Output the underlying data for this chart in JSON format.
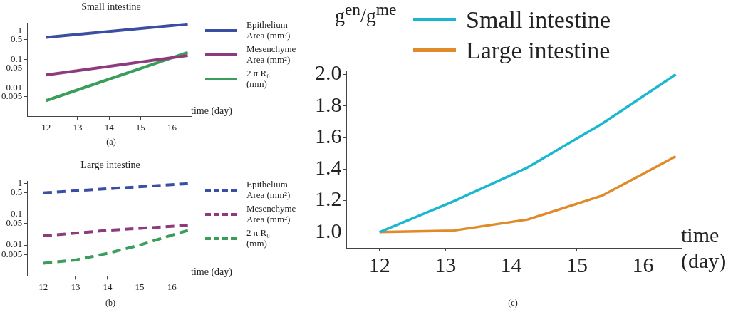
{
  "chart_data": [
    {
      "type": "line",
      "title": "Small intestine",
      "xlabel": "time (day)",
      "log": "y",
      "grid": false,
      "legend": "right",
      "line_style": "solid",
      "xlim": [
        11.4,
        16.6
      ],
      "xticks": [
        12,
        13,
        14,
        15,
        16
      ],
      "ylim": [
        0.001,
        2
      ],
      "yticks": [
        0.005,
        0.01,
        0.05,
        0.1,
        0.5,
        1
      ],
      "annotations": [
        "(a)"
      ],
      "series": [
        {
          "name": "Epithelium Area (mm²)",
          "color": "#3a4ea3",
          "x": [
            12,
            16.5
          ],
          "values": [
            0.61,
            1.8
          ]
        },
        {
          "name": "Mesenchyme Area (mm²)",
          "color": "#8e3a7f",
          "x": [
            12,
            16.5
          ],
          "values": [
            0.029,
            0.14
          ]
        },
        {
          "name": "2 π R₀ (mm)",
          "color": "#3a9e5a",
          "x": [
            12,
            16.5
          ],
          "values": [
            0.0036,
            0.18
          ]
        }
      ]
    },
    {
      "type": "line",
      "title": "Large intestine",
      "xlabel": "time (day)",
      "log": "y",
      "grid": false,
      "legend": "right",
      "line_style": "dashed",
      "xlim": [
        11.5,
        16.55
      ],
      "xticks": [
        12,
        13,
        14,
        15,
        16
      ],
      "ylim": [
        0.001,
        1.2
      ],
      "yticks": [
        0.005,
        0.01,
        0.05,
        0.1,
        0.5,
        1
      ],
      "annotations": [
        "(b)"
      ],
      "series": [
        {
          "name": "Epithelium Area (mm²)",
          "color": "#3a4ea3",
          "x": [
            12,
            14,
            16.5
          ],
          "values": [
            0.49,
            0.67,
            0.98
          ]
        },
        {
          "name": "Mesenchyme Area (mm²)",
          "color": "#8e3a7f",
          "x": [
            12,
            14,
            16.5
          ],
          "values": [
            0.02,
            0.03,
            0.044
          ]
        },
        {
          "name": "2 π R₀ (mm)",
          "color": "#3a9e5a",
          "x": [
            12,
            13,
            14,
            15,
            16,
            16.5
          ],
          "values": [
            0.0026,
            0.0033,
            0.0054,
            0.01,
            0.021,
            0.03
          ]
        }
      ]
    },
    {
      "type": "line",
      "ylabel": "g$^{en}$/g$^{me}$",
      "xlabel": "time (day)",
      "grid": false,
      "legend": "top",
      "line_style": "solid",
      "xlim": [
        11.5,
        16.58
      ],
      "xticks": [
        12,
        13,
        14,
        15,
        16
      ],
      "ylim": [
        0.9,
        2.02
      ],
      "yticks": [
        {
          "value": 1,
          "label": "1.0"
        },
        {
          "value": 1.2,
          "label": "1.2"
        },
        {
          "value": 1.4,
          "label": "1.4"
        },
        {
          "value": 1.6,
          "label": "1.6"
        },
        {
          "value": 1.8,
          "label": "1.8"
        },
        {
          "value": 2,
          "label": "2.0"
        }
      ],
      "annotations": [
        "(c)"
      ],
      "series": [
        {
          "name": "Small intestine",
          "color": "#1ab8d0",
          "x": [
            12,
            13.125,
            14.25,
            15.375,
            16.5
          ],
          "values": [
            1.0,
            1.195,
            1.41,
            1.686,
            2.0
          ]
        },
        {
          "name": "Large intestine",
          "color": "#e08a2a",
          "x": [
            12,
            13.125,
            14.25,
            15.375,
            16.5
          ],
          "values": [
            1.0,
            1.01,
            1.08,
            1.23,
            1.48
          ]
        }
      ]
    }
  ]
}
